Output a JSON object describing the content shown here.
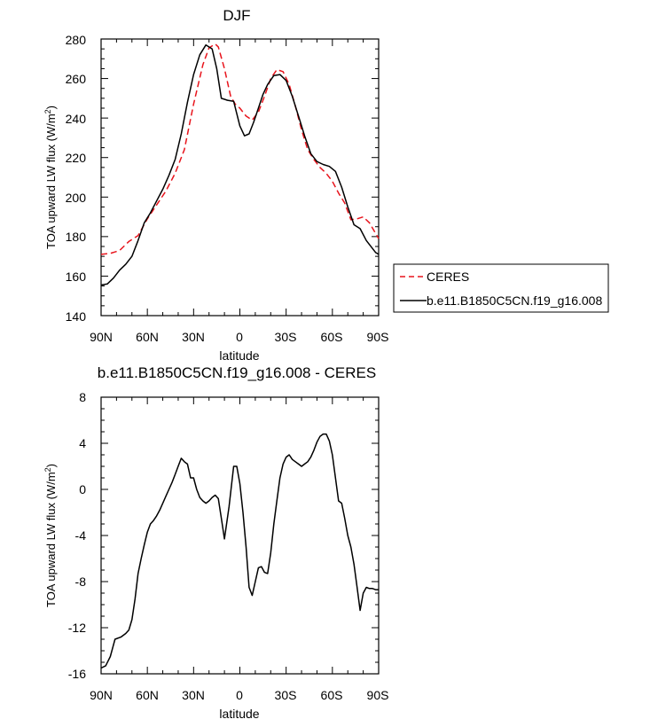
{
  "chart_data": [
    {
      "type": "line",
      "title": "DJF",
      "xlabel": "latitude",
      "ylabel": "TOA upward LW flux (W/m",
      "ylabel_superscript": "2",
      "ylabel_suffix": ")",
      "xlim": [
        -90,
        90
      ],
      "ylim": [
        140,
        280
      ],
      "x_tick_values": [
        -90,
        -60,
        -30,
        0,
        30,
        60,
        90
      ],
      "x_tick_labels": [
        "90N",
        "60N",
        "30N",
        "0",
        "30S",
        "60S",
        "90S"
      ],
      "y_tick_values": [
        140,
        160,
        180,
        200,
        220,
        240,
        260,
        280
      ],
      "y_tick_labels": [
        "140",
        "160",
        "180",
        "200",
        "220",
        "240",
        "260",
        "280"
      ],
      "legend": {
        "placement": "right",
        "entries": [
          "CERES",
          "b.e11.B1850C5CN.f19_g16.008"
        ]
      },
      "series": [
        {
          "name": "CERES",
          "color": "#e8141c",
          "style": "dashed",
          "x": [
            -90,
            -84,
            -78,
            -72,
            -66,
            -60,
            -54,
            -48,
            -42,
            -36,
            -30,
            -24,
            -20,
            -16,
            -14,
            -10,
            -6,
            -3,
            0,
            4,
            8,
            12,
            16,
            20,
            24,
            28,
            32,
            36,
            40,
            44,
            48,
            52,
            56,
            60,
            64,
            68,
            72,
            76,
            80,
            84,
            87,
            90
          ],
          "y": [
            171,
            171.5,
            173,
            177.5,
            180.5,
            189,
            196,
            203,
            212,
            224,
            247,
            267,
            275.5,
            277.5,
            276,
            265,
            251,
            247,
            245,
            241,
            239,
            243,
            251,
            260,
            264.5,
            263.5,
            257,
            246,
            234,
            224,
            219,
            215,
            212,
            208,
            202,
            197,
            188.5,
            189,
            190,
            187,
            183,
            179
          ]
        },
        {
          "name": "b.e11.B1850C5CN.f19_g16.008",
          "color": "#000000",
          "style": "solid",
          "x": [
            -90,
            -86,
            -82,
            -78,
            -74,
            -70,
            -66,
            -62,
            -58,
            -54,
            -50,
            -46,
            -42,
            -38,
            -34,
            -30,
            -26,
            -22,
            -18,
            -15,
            -12,
            -8,
            -4,
            0,
            3,
            6,
            9,
            12,
            15,
            18,
            22,
            26,
            30,
            34,
            38,
            42,
            46,
            50,
            54,
            58,
            62,
            66,
            70,
            74,
            78,
            82,
            86,
            88,
            90
          ],
          "y": [
            155.5,
            156,
            159,
            163,
            166,
            170,
            178,
            187,
            192,
            198,
            204,
            211,
            219,
            232,
            248,
            262,
            272,
            277,
            275,
            265,
            250,
            249,
            248.5,
            236,
            231,
            232,
            238,
            245,
            252,
            257,
            261.5,
            262,
            259,
            251,
            241,
            231,
            222,
            218,
            216.5,
            215.5,
            213,
            205,
            195,
            186,
            184,
            178,
            174,
            172,
            171
          ]
        }
      ]
    },
    {
      "type": "line",
      "title": "b.e11.B1850C5CN.f19_g16.008 - CERES",
      "xlabel": "latitude",
      "ylabel": "TOA upward LW flux (W/m",
      "ylabel_superscript": "2",
      "ylabel_suffix": ")",
      "xlim": [
        -90,
        90
      ],
      "ylim": [
        -16,
        8
      ],
      "x_tick_values": [
        -90,
        -60,
        -30,
        0,
        30,
        60,
        90
      ],
      "x_tick_labels": [
        "90N",
        "60N",
        "30N",
        "0",
        "30S",
        "60S",
        "90S"
      ],
      "y_tick_values": [
        -16,
        -12,
        -8,
        -4,
        0,
        4,
        8
      ],
      "y_tick_labels": [
        "-16",
        "-12",
        "-8",
        "-4",
        "0",
        "4",
        "8"
      ],
      "series": [
        {
          "color": "#000000",
          "style": "solid",
          "x": [
            -90,
            -87,
            -84,
            -81,
            -77,
            -74,
            -72,
            -70,
            -68,
            -66,
            -64,
            -62,
            -60,
            -58,
            -56,
            -54,
            -52,
            -50,
            -48,
            -46,
            -44,
            -42,
            -40,
            -38,
            -36,
            -35,
            -34,
            -32,
            -30,
            -28,
            -26,
            -24,
            -22,
            -20,
            -18,
            -16,
            -14,
            -12,
            -10,
            -7,
            -4,
            -2,
            0,
            2,
            4,
            6,
            8,
            10,
            12,
            14,
            16,
            18,
            20,
            22,
            24,
            26,
            28,
            30,
            32,
            34,
            36,
            38,
            40,
            42,
            44,
            46,
            48,
            50,
            52,
            54,
            56,
            58,
            60,
            62,
            64,
            66,
            68,
            70,
            72,
            74,
            76,
            78,
            80,
            82,
            84,
            86,
            88,
            90
          ],
          "y": [
            -15.5,
            -15.3,
            -14.5,
            -13,
            -12.8,
            -12.5,
            -12.2,
            -11.3,
            -9.5,
            -7.3,
            -6,
            -4.8,
            -3.7,
            -3.0,
            -2.7,
            -2.3,
            -1.8,
            -1.2,
            -0.6,
            0.0,
            0.6,
            1.3,
            2.0,
            2.7,
            2.4,
            2.3,
            2.2,
            1.0,
            1.0,
            0.0,
            -0.7,
            -1.0,
            -1.2,
            -1.0,
            -0.7,
            -0.5,
            -0.8,
            -2.5,
            -4.3,
            -1.5,
            2.0,
            2.0,
            0.5,
            -2.0,
            -5.0,
            -8.5,
            -9.2,
            -8.0,
            -6.8,
            -6.7,
            -7.2,
            -7.3,
            -5.5,
            -3.0,
            -1.0,
            1.0,
            2.2,
            2.8,
            3.0,
            2.6,
            2.4,
            2.2,
            2.0,
            2.2,
            2.4,
            2.8,
            3.4,
            4.1,
            4.6,
            4.8,
            4.8,
            4.2,
            3.0,
            1.0,
            -1.0,
            -1.2,
            -2.5,
            -4.0,
            -5.0,
            -6.5,
            -8.5,
            -10.5,
            -9.0,
            -8.5,
            -8.6,
            -8.6,
            -8.7,
            -8.7
          ]
        }
      ]
    }
  ]
}
